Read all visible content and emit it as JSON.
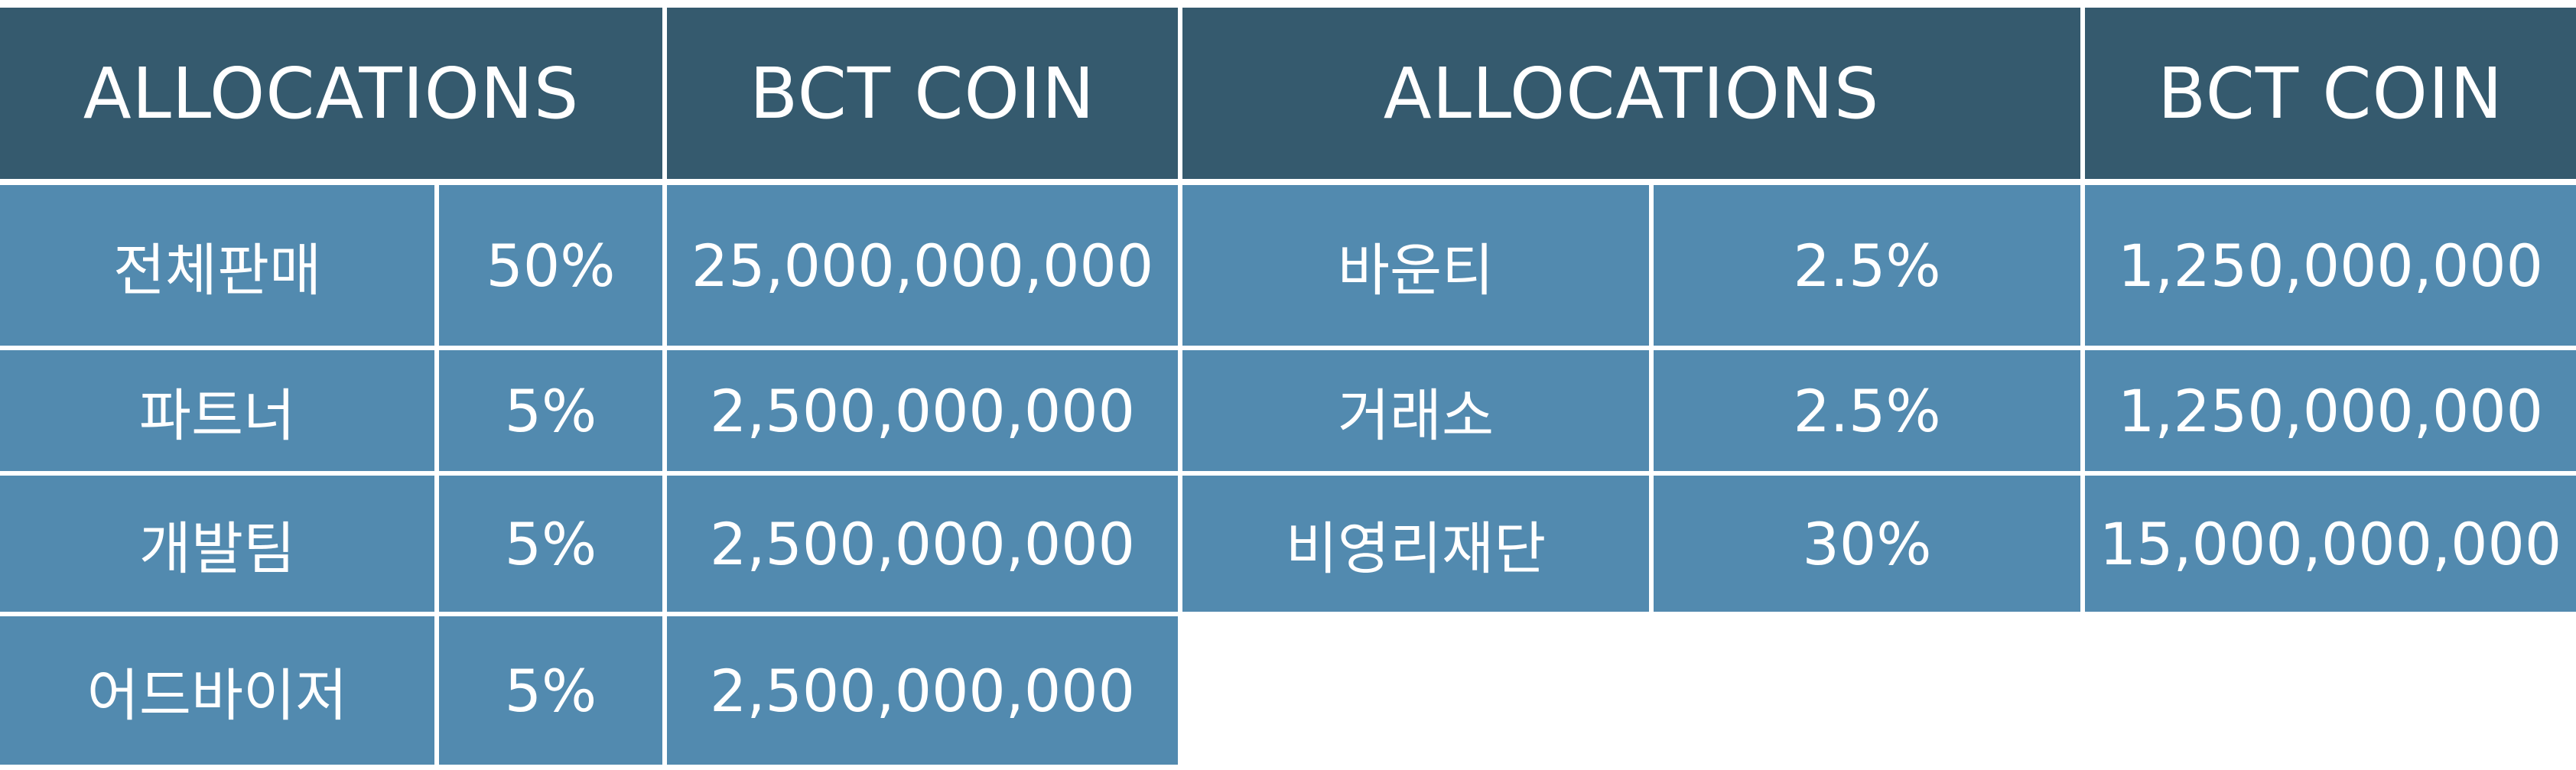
{
  "left_table": {
    "header": {
      "allocations": "ALLOCATIONS",
      "coin": "BCT COIN"
    },
    "rows": [
      {
        "name": "전체판매",
        "percent": "50%",
        "amount": "25,000,000,000"
      },
      {
        "name": "파트너",
        "percent": "5%",
        "amount": "2,500,000,000"
      },
      {
        "name": "개발팀",
        "percent": "5%",
        "amount": "2,500,000,000"
      },
      {
        "name": "어드바이저",
        "percent": "5%",
        "amount": "2,500,000,000"
      }
    ]
  },
  "right_table": {
    "header": {
      "allocations": "ALLOCATIONS",
      "coin": "BCT COIN"
    },
    "rows": [
      {
        "name": "바운티",
        "percent": "2.5%",
        "amount": "1,250,000,000"
      },
      {
        "name": "거래소",
        "percent": "2.5%",
        "amount": "1,250,000,000"
      },
      {
        "name": "비영리재단",
        "percent": "30%",
        "amount": "15,000,000,000"
      }
    ]
  },
  "colors": {
    "header_bg": "#355a6e",
    "body_bg": "#528aaf",
    "text": "#ffffff"
  }
}
